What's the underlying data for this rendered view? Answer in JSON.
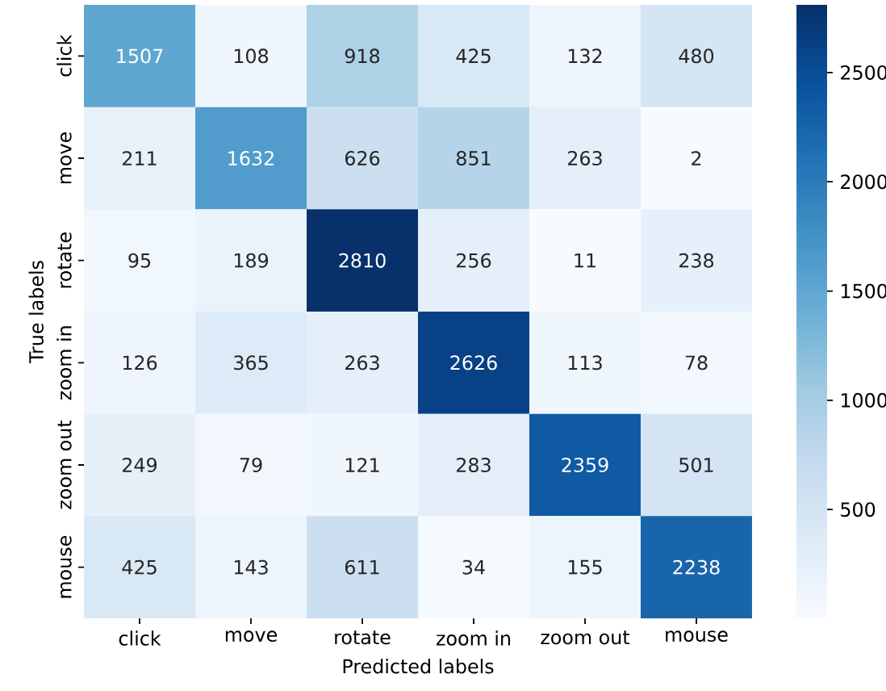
{
  "chart_data": {
    "type": "heatmap",
    "xlabel": "Predicted labels",
    "ylabel": "True labels",
    "categories": [
      "click",
      "move",
      "rotate",
      "zoom in",
      "zoom out",
      "mouse"
    ],
    "y_categories": [
      "click",
      "move",
      "rotate",
      "zoom in",
      "zoom out",
      "mouse"
    ],
    "cells": [
      [
        1507,
        108,
        918,
        425,
        132,
        480
      ],
      [
        211,
        1632,
        626,
        851,
        263,
        2
      ],
      [
        95,
        189,
        2810,
        256,
        11,
        238
      ],
      [
        126,
        365,
        263,
        2626,
        113,
        78
      ],
      [
        249,
        79,
        121,
        283,
        2359,
        501
      ],
      [
        425,
        143,
        611,
        34,
        155,
        2238
      ]
    ],
    "clim": [
      2,
      2810
    ],
    "cticks": [
      500,
      1000,
      1500,
      2000,
      2500
    ],
    "data_labels": true
  }
}
